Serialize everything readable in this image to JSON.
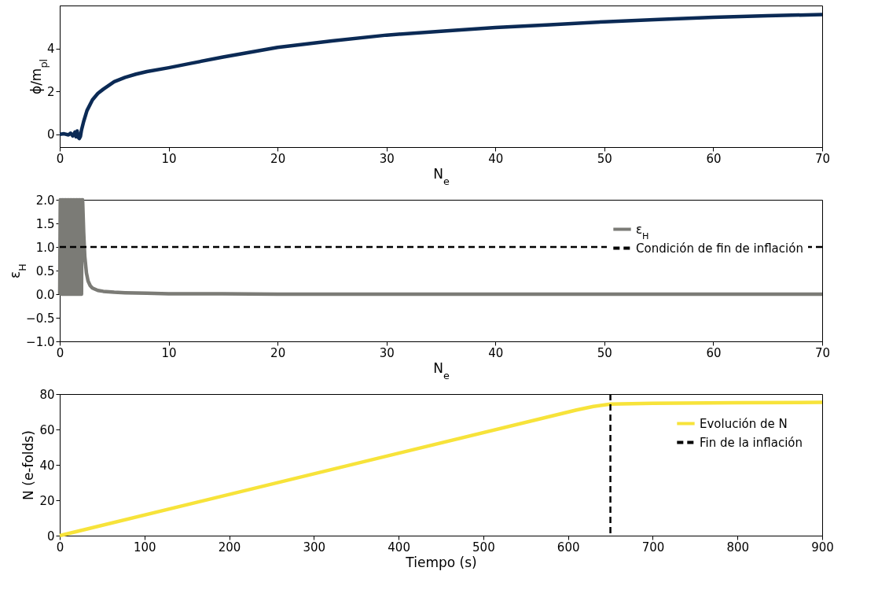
{
  "chart_data": [
    {
      "type": "line",
      "xlabel": "N$_{e}$",
      "ylabel": "ϕ/m$_{pl}$",
      "xlim": [
        0,
        70
      ],
      "ylim": [
        -0.6,
        6.0
      ],
      "xticks": [
        0,
        10,
        20,
        30,
        40,
        50,
        60,
        70
      ],
      "yticks": [
        0,
        2,
        4
      ],
      "grid": false,
      "legend": false,
      "marker": "none",
      "line_style": "solid",
      "series": [
        {
          "color": "#0b2a55",
          "x": [
            0,
            0.4,
            0.8,
            1.0,
            1.2,
            1.4,
            1.5,
            1.6,
            1.7,
            1.8,
            1.9,
            2.0,
            2.2,
            2.5,
            3,
            3.5,
            4,
            5,
            6,
            7,
            8,
            10,
            12,
            15,
            20,
            25,
            30,
            35,
            40,
            45,
            50,
            55,
            60,
            65,
            70
          ],
          "values": [
            0,
            0.02,
            -0.03,
            0.05,
            -0.08,
            0.1,
            -0.12,
            0.15,
            -0.15,
            -0.2,
            -0.1,
            0.2,
            0.6,
            1.1,
            1.6,
            1.9,
            2.1,
            2.45,
            2.65,
            2.8,
            2.92,
            3.1,
            3.3,
            3.6,
            4.05,
            4.35,
            4.62,
            4.8,
            4.97,
            5.1,
            5.24,
            5.35,
            5.45,
            5.52,
            5.58
          ]
        }
      ]
    },
    {
      "type": "line",
      "xlabel": "N$_{e}$",
      "ylabel": "ε$_{H}$",
      "xlim": [
        0,
        70
      ],
      "ylim": [
        -1.0,
        2.0
      ],
      "xticks": [
        0,
        10,
        20,
        30,
        40,
        50,
        60,
        70
      ],
      "yticks": [
        {
          "value": -1,
          "label": "−1.0"
        },
        -0.5,
        {
          "value": 0,
          "label": "0.0"
        },
        0.5,
        {
          "value": 1,
          "label": "1.0"
        },
        1.5,
        {
          "value": 2,
          "label": "2.0"
        }
      ],
      "grid": false,
      "legend": "top right",
      "marker": "none",
      "line_style": "solid",
      "series": [
        {
          "name": "ε$_{H}$",
          "color": "#7b7b76",
          "x": [
            0,
            0.05,
            0.1,
            0.15,
            0.2,
            0.25,
            0.3,
            0.35,
            0.4,
            0.45,
            0.5,
            0.55,
            0.6,
            0.65,
            0.7,
            0.75,
            0.8,
            0.85,
            0.9,
            0.95,
            1.0,
            1.05,
            1.1,
            1.15,
            1.2,
            1.25,
            1.3,
            1.35,
            1.4,
            1.45,
            1.5,
            1.55,
            1.6,
            1.65,
            1.7,
            1.75,
            1.8,
            1.85,
            1.9,
            1.95,
            2.0,
            2.05,
            2.1,
            2.2,
            2.3,
            2.45,
            2.6,
            2.8,
            3.0,
            3.5,
            4,
            5,
            6,
            8,
            10,
            15,
            20,
            30,
            40,
            50,
            60,
            70
          ],
          "values": [
            0,
            2,
            0,
            2,
            0,
            2,
            0,
            2,
            0,
            2,
            0,
            2,
            0,
            2,
            0,
            2,
            0,
            2,
            0,
            2,
            0,
            2,
            0,
            2,
            0,
            2,
            0,
            2,
            0,
            2,
            0,
            2,
            0,
            2,
            0,
            2,
            0,
            2,
            0,
            2,
            0,
            2,
            2,
            1.3,
            0.8,
            0.45,
            0.28,
            0.18,
            0.13,
            0.08,
            0.06,
            0.04,
            0.03,
            0.02,
            0.01,
            0.01,
            0,
            0,
            0,
            0,
            0,
            0
          ]
        }
      ],
      "ref_lines": [
        {
          "axis": "y",
          "value": 1.0,
          "label": "Condición de fin de inflación",
          "color": "#000000",
          "line_style": "dashed"
        }
      ]
    },
    {
      "type": "line",
      "xlabel": "Tiempo (s)",
      "ylabel": "N (e-folds)",
      "xlim": [
        0,
        900
      ],
      "ylim": [
        0,
        80
      ],
      "xticks": [
        0,
        100,
        200,
        300,
        400,
        500,
        600,
        700,
        800,
        900
      ],
      "yticks": [
        0,
        20,
        40,
        60,
        80
      ],
      "grid": false,
      "legend": "top right",
      "marker": "none",
      "line_style": "solid",
      "series": [
        {
          "name": "Evolución de N",
          "color": "#f7e33a",
          "x": [
            0,
            610,
            630,
            650,
            700,
            800,
            900
          ],
          "values": [
            0,
            71,
            73,
            74.3,
            74.8,
            75.1,
            75.3
          ]
        }
      ],
      "ref_lines": [
        {
          "axis": "x",
          "value": 650,
          "label": "Fin de la inflación",
          "color": "#000000",
          "line_style": "dashed"
        }
      ]
    }
  ]
}
